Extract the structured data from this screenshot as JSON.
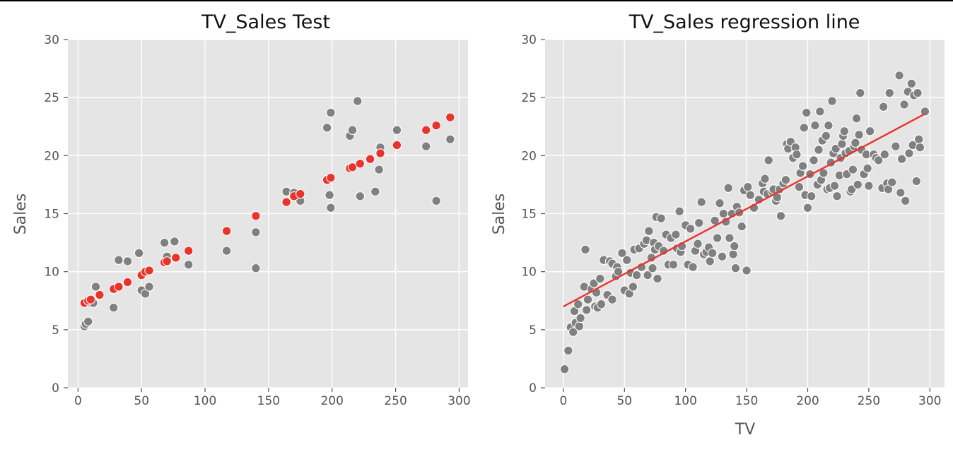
{
  "chart_data": [
    {
      "type": "scatter",
      "title": "TV_Sales Test",
      "xlabel": "",
      "ylabel": "Sales",
      "xlim": [
        -8,
        307
      ],
      "ylim": [
        0,
        30
      ],
      "xticks": [
        0,
        50,
        100,
        150,
        200,
        250,
        300
      ],
      "yticks": [
        0,
        5,
        10,
        15,
        20,
        25,
        30
      ],
      "grid": true,
      "series": [
        {
          "color": "#808080",
          "points": [
            [
              5,
              5.3
            ],
            [
              6,
              5.5
            ],
            [
              8,
              5.7
            ],
            [
              10,
              7.3
            ],
            [
              12,
              7.3
            ],
            [
              14,
              8.7
            ],
            [
              28,
              6.9
            ],
            [
              32,
              11
            ],
            [
              39,
              10.9
            ],
            [
              48,
              11.6
            ],
            [
              50,
              8.4
            ],
            [
              53,
              8.1
            ],
            [
              56,
              8.7
            ],
            [
              68,
              12.5
            ],
            [
              70,
              11.3
            ],
            [
              76,
              12.6
            ],
            [
              77,
              11.2
            ],
            [
              87,
              10.6
            ],
            [
              117,
              11.8
            ],
            [
              140,
              13.4
            ],
            [
              140,
              10.3
            ],
            [
              164,
              16.9
            ],
            [
              170,
              16.8
            ],
            [
              175,
              16.1
            ],
            [
              196,
              22.4
            ],
            [
              198,
              16.6
            ],
            [
              199,
              23.7
            ],
            [
              199,
              15.5
            ],
            [
              214,
              21.7
            ],
            [
              216,
              22.2
            ],
            [
              220,
              24.7
            ],
            [
              222,
              16.5
            ],
            [
              234,
              16.9
            ],
            [
              237,
              18.8
            ],
            [
              238,
              20.7
            ],
            [
              251,
              22.2
            ],
            [
              274,
              20.8
            ],
            [
              282,
              16.1
            ],
            [
              293,
              21.4
            ]
          ]
        },
        {
          "color": "#e8352c",
          "points": [
            [
              5,
              7.3
            ],
            [
              8,
              7.5
            ],
            [
              10,
              7.6
            ],
            [
              17,
              8.0
            ],
            [
              28,
              8.5
            ],
            [
              32,
              8.7
            ],
            [
              39,
              9.1
            ],
            [
              50,
              9.7
            ],
            [
              53,
              10.0
            ],
            [
              56,
              10.1
            ],
            [
              68,
              10.8
            ],
            [
              70,
              10.9
            ],
            [
              77,
              11.2
            ],
            [
              87,
              11.8
            ],
            [
              117,
              13.5
            ],
            [
              140,
              14.8
            ],
            [
              164,
              16.0
            ],
            [
              170,
              16.5
            ],
            [
              175,
              16.7
            ],
            [
              196,
              17.9
            ],
            [
              199,
              18.1
            ],
            [
              214,
              18.9
            ],
            [
              216,
              19.0
            ],
            [
              222,
              19.3
            ],
            [
              230,
              19.7
            ],
            [
              238,
              20.2
            ],
            [
              251,
              20.9
            ],
            [
              274,
              22.2
            ],
            [
              282,
              22.6
            ],
            [
              293,
              23.3
            ]
          ]
        }
      ]
    },
    {
      "type": "scatter",
      "title": "TV_Sales regression line",
      "xlabel": "TV",
      "ylabel": "Sales",
      "xlim": [
        -15,
        312
      ],
      "ylim": [
        0,
        30
      ],
      "xticks": [
        0,
        50,
        100,
        150,
        200,
        250,
        300
      ],
      "yticks": [
        0,
        5,
        10,
        15,
        20,
        25,
        30
      ],
      "grid": true,
      "series": [
        {
          "color": "#808080",
          "points": [
            [
              1,
              1.6
            ],
            [
              4,
              3.2
            ],
            [
              6,
              5.2
            ],
            [
              8,
              4.8
            ],
            [
              9,
              6.6
            ],
            [
              10,
              5.6
            ],
            [
              12,
              7.2
            ],
            [
              13,
              5.3
            ],
            [
              14,
              6.0
            ],
            [
              17,
              8.7
            ],
            [
              18,
              11.9
            ],
            [
              19,
              6.7
            ],
            [
              20,
              7.6
            ],
            [
              23,
              8.5
            ],
            [
              25,
              9.0
            ],
            [
              26,
              7.0
            ],
            [
              27,
              8.2
            ],
            [
              28,
              6.9
            ],
            [
              30,
              9.4
            ],
            [
              31,
              7.2
            ],
            [
              33,
              11.0
            ],
            [
              36,
              8.0
            ],
            [
              38,
              10.9
            ],
            [
              40,
              7.6
            ],
            [
              40,
              10.7
            ],
            [
              43,
              9.6
            ],
            [
              44,
              10.4
            ],
            [
              45,
              10.0
            ],
            [
              48,
              11.6
            ],
            [
              50,
              8.4
            ],
            [
              52,
              11.0
            ],
            [
              54,
              8.1
            ],
            [
              55,
              9.9
            ],
            [
              57,
              8.7
            ],
            [
              58,
              11.9
            ],
            [
              60,
              9.7
            ],
            [
              62,
              12.0
            ],
            [
              64,
              10.4
            ],
            [
              66,
              12.4
            ],
            [
              68,
              12.7
            ],
            [
              69,
              9.7
            ],
            [
              70,
              13.5
            ],
            [
              72,
              11.2
            ],
            [
              73,
              10.3
            ],
            [
              74,
              12.5
            ],
            [
              75,
              11.9
            ],
            [
              76,
              14.7
            ],
            [
              77,
              9.4
            ],
            [
              78,
              12.2
            ],
            [
              80,
              14.6
            ],
            [
              82,
              11.8
            ],
            [
              84,
              13.2
            ],
            [
              86,
              10.6
            ],
            [
              88,
              12.9
            ],
            [
              90,
              10.6
            ],
            [
              92,
              13.2
            ],
            [
              93,
              12.0
            ],
            [
              95,
              15.2
            ],
            [
              96,
              11.7
            ],
            [
              97,
              12.2
            ],
            [
              100,
              14.0
            ],
            [
              102,
              10.6
            ],
            [
              104,
              13.7
            ],
            [
              106,
              10.4
            ],
            [
              108,
              11.8
            ],
            [
              110,
              12.4
            ],
            [
              111,
              14.2
            ],
            [
              113,
              16.0
            ],
            [
              115,
              11.5
            ],
            [
              117,
              11.7
            ],
            [
              119,
              12.1
            ],
            [
              120,
              10.9
            ],
            [
              122,
              11.6
            ],
            [
              124,
              14.4
            ],
            [
              126,
              12.9
            ],
            [
              128,
              15.9
            ],
            [
              130,
              11.3
            ],
            [
              131,
              15.0
            ],
            [
              133,
              14.3
            ],
            [
              135,
              17.2
            ],
            [
              136,
              12.9
            ],
            [
              138,
              15.0
            ],
            [
              139,
              11.5
            ],
            [
              140,
              12.2
            ],
            [
              141,
              10.3
            ],
            [
              142,
              15.6
            ],
            [
              144,
              15.1
            ],
            [
              146,
              13.9
            ],
            [
              148,
              17.0
            ],
            [
              150,
              10.1
            ],
            [
              151,
              17.3
            ],
            [
              153,
              16.6
            ],
            [
              156,
              15.5
            ],
            [
              160,
              16.2
            ],
            [
              163,
              17.6
            ],
            [
              164,
              16.9
            ],
            [
              165,
              18.0
            ],
            [
              167,
              16.7
            ],
            [
              168,
              19.6
            ],
            [
              171,
              16.9
            ],
            [
              172,
              17.1
            ],
            [
              174,
              16.1
            ],
            [
              175,
              16.4
            ],
            [
              177,
              17.1
            ],
            [
              178,
              14.8
            ],
            [
              180,
              17.6
            ],
            [
              182,
              17.9
            ],
            [
              183,
              21.0
            ],
            [
              184,
              20.6
            ],
            [
              186,
              21.2
            ],
            [
              188,
              19.8
            ],
            [
              190,
              20.7
            ],
            [
              191,
              20.1
            ],
            [
              193,
              17.3
            ],
            [
              194,
              18.5
            ],
            [
              196,
              19.1
            ],
            [
              197,
              22.4
            ],
            [
              198,
              16.6
            ],
            [
              199,
              23.7
            ],
            [
              200,
              15.5
            ],
            [
              202,
              18.4
            ],
            [
              203,
              16.5
            ],
            [
              205,
              19.6
            ],
            [
              206,
              22.6
            ],
            [
              208,
              17.5
            ],
            [
              209,
              20.5
            ],
            [
              210,
              23.8
            ],
            [
              211,
              17.9
            ],
            [
              212,
              21.3
            ],
            [
              213,
              18.5
            ],
            [
              215,
              21.7
            ],
            [
              216,
              17.1
            ],
            [
              217,
              22.6
            ],
            [
              218,
              17.2
            ],
            [
              219,
              19.4
            ],
            [
              220,
              24.7
            ],
            [
              221,
              20.2
            ],
            [
              222,
              17.4
            ],
            [
              223,
              20.6
            ],
            [
              224,
              16.5
            ],
            [
              226,
              18.3
            ],
            [
              227,
              19.8
            ],
            [
              228,
              21.0
            ],
            [
              229,
              21.7
            ],
            [
              230,
              22.1
            ],
            [
              231,
              20.2
            ],
            [
              232,
              18.4
            ],
            [
              234,
              20.4
            ],
            [
              235,
              16.9
            ],
            [
              236,
              17.1
            ],
            [
              237,
              18.8
            ],
            [
              238,
              20.8
            ],
            [
              239,
              21.1
            ],
            [
              240,
              23.2
            ],
            [
              241,
              17.5
            ],
            [
              242,
              21.8
            ],
            [
              243,
              25.4
            ],
            [
              244,
              20.5
            ],
            [
              246,
              18.4
            ],
            [
              248,
              20.1
            ],
            [
              249,
              18.9
            ],
            [
              250,
              17.4
            ],
            [
              251,
              22.1
            ],
            [
              254,
              20.1
            ],
            [
              256,
              19.8
            ],
            [
              258,
              19.6
            ],
            [
              261,
              17.2
            ],
            [
              262,
              24.2
            ],
            [
              263,
              20.1
            ],
            [
              265,
              17.6
            ],
            [
              266,
              17.1
            ],
            [
              267,
              25.4
            ],
            [
              269,
              17.7
            ],
            [
              272,
              20.8
            ],
            [
              275,
              26.9
            ],
            [
              276,
              16.8
            ],
            [
              277,
              19.7
            ],
            [
              279,
              24.4
            ],
            [
              280,
              16.1
            ],
            [
              282,
              25.5
            ],
            [
              283,
              20.2
            ],
            [
              285,
              26.2
            ],
            [
              286,
              20.9
            ],
            [
              287,
              25.2
            ],
            [
              289,
              17.8
            ],
            [
              290,
              25.4
            ],
            [
              291,
              21.4
            ],
            [
              292,
              20.7
            ],
            [
              296,
              23.8
            ]
          ]
        }
      ],
      "regression_line": {
        "color": "#e8352c",
        "x": [
          0,
          296
        ],
        "y": [
          7.0,
          23.6
        ]
      }
    }
  ]
}
